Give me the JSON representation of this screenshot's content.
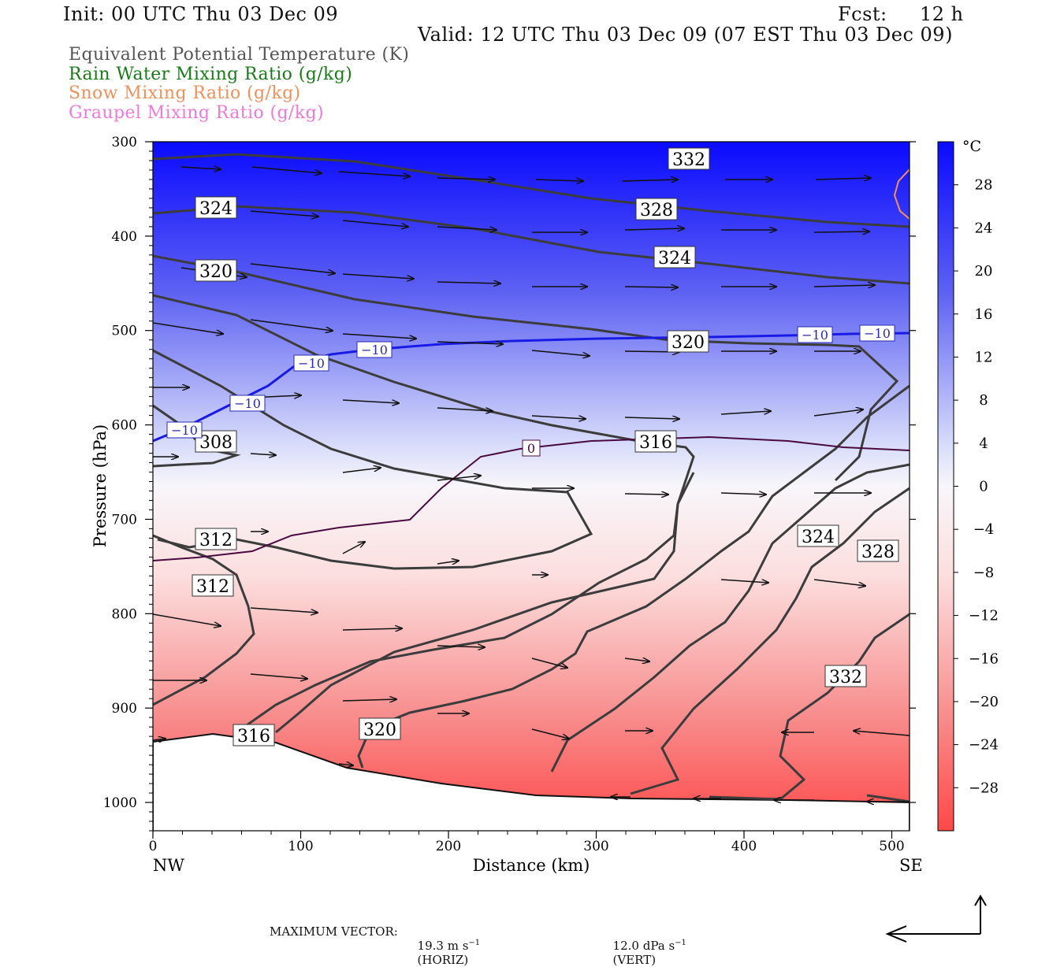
{
  "header": {
    "init": "Init: 00 UTC Thu 03 Dec 09",
    "fcst_label": "Fcst:",
    "fcst_value": "12 h",
    "valid": "Valid: 12 UTC Thu 03 Dec 09 (07 EST Thu 03 Dec 09)"
  },
  "legend": [
    {
      "label": "Equivalent Potential Temperature (K)",
      "color": "#555555"
    },
    {
      "label": "Rain Water Mixing Ratio (g/kg)",
      "color": "#1a7a1a"
    },
    {
      "label": "Snow Mixing Ratio (g/kg)",
      "color": "#f0905a"
    },
    {
      "label": "Graupel Mixing Ratio (g/kg)",
      "color": "#f07ad8"
    }
  ],
  "chart_data": {
    "type": "cross-section",
    "xlabel": "Distance (km)",
    "ylabel": "Pressure (hPa)",
    "x_range": [
      0,
      512
    ],
    "y_range": [
      1030,
      300
    ],
    "x_ticks": [
      "0",
      "100",
      "200",
      "300",
      "400",
      "500"
    ],
    "y_ticks": [
      "300",
      "400",
      "500",
      "600",
      "700",
      "800",
      "900",
      "1000"
    ],
    "x_end_labels": {
      "left": "NW",
      "right": "SE"
    },
    "colorbar": {
      "unit": "°C",
      "tick_labels": [
        "28",
        "24",
        "20",
        "16",
        "12",
        "8",
        "4",
        "0",
        "−4",
        "−8",
        "−12",
        "−16",
        "−20",
        "−24",
        "−28"
      ],
      "range": [
        -32,
        32
      ],
      "cold_color": "#0000ff",
      "warm_color": "#ff0000"
    },
    "theta_e_labels": [
      "332",
      "328",
      "324",
      "324",
      "320",
      "320",
      "316",
      "308",
      "312",
      "312",
      "316",
      "320",
      "324",
      "328",
      "332"
    ],
    "temperature_contour_labels": [
      "−10",
      "−10",
      "−10",
      "−10",
      "−10",
      "−10",
      "0"
    ]
  },
  "footer": {
    "label": "MAXIMUM VECTOR:",
    "horiz_value": "19.3 m s",
    "horiz_unit": "(HORIZ)",
    "vert_value": "12.0 dPa s",
    "vert_unit": "(VERT)",
    "exp": "−1"
  }
}
